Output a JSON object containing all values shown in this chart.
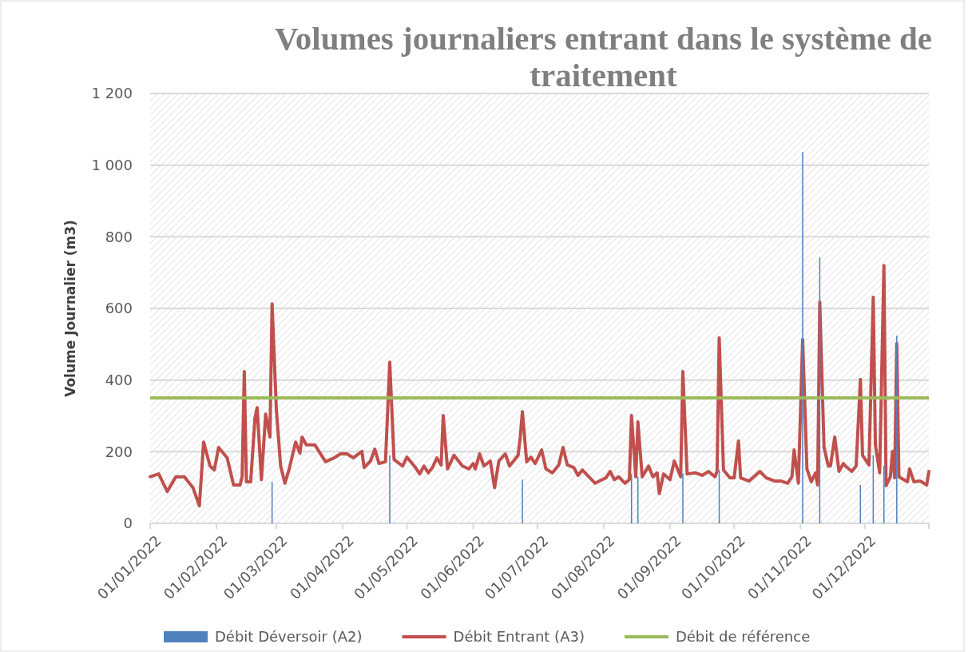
{
  "chart_data": {
    "type": "line",
    "title": "Volumes journaliers entrant dans le système de traitement",
    "ylabel": "Volume Journalier (m3)",
    "xlim": [
      "2022-01-01",
      "2022-12-31"
    ],
    "xticks": [
      {
        "value": "2022-01-01",
        "label": "01/01/2022"
      },
      {
        "value": "2022-02-01",
        "label": "01/02/2022"
      },
      {
        "value": "2022-03-01",
        "label": "01/03/2022"
      },
      {
        "value": "2022-04-01",
        "label": "01/04/2022"
      },
      {
        "value": "2022-05-01",
        "label": "01/05/2022"
      },
      {
        "value": "2022-06-01",
        "label": "01/06/2022"
      },
      {
        "value": "2022-07-01",
        "label": "01/07/2022"
      },
      {
        "value": "2022-08-01",
        "label": "01/08/2022"
      },
      {
        "value": "2022-09-01",
        "label": "01/09/2022"
      },
      {
        "value": "2022-10-01",
        "label": "01/10/2022"
      },
      {
        "value": "2022-11-01",
        "label": "01/11/2022"
      },
      {
        "value": "2022-12-01",
        "label": "01/12/2022"
      }
    ],
    "ylim": [
      0,
      1200
    ],
    "yticks": [
      0,
      200,
      400,
      600,
      800,
      {
        "value": 1000,
        "label": "1 000"
      },
      {
        "value": 1200,
        "label": "1 200"
      }
    ],
    "grid": "y",
    "legend": "bottom",
    "ref_lines": [
      {
        "axis": "y",
        "value": 350,
        "label": "Débit de référence",
        "color": "#9bbb59"
      }
    ],
    "series": [
      {
        "name": "Débit Déversoir (A2)",
        "type": "bar",
        "color": "#4f81bd",
        "x": [
          "2022-02-27",
          "2022-04-23",
          "2022-06-24",
          "2022-08-14",
          "2022-08-17",
          "2022-09-07",
          "2022-09-24",
          "2022-11-02",
          "2022-11-10",
          "2022-11-29",
          "2022-12-05",
          "2022-12-10",
          "2022-12-16"
        ],
        "values": [
          116,
          190,
          122,
          138,
          130,
          140,
          150,
          1037,
          742,
          107,
          190,
          160,
          524
        ]
      },
      {
        "name": "Débit Entrant (A3)",
        "color": "#c0504d",
        "x": [
          "2022-01-01",
          "2022-01-05",
          "2022-01-09",
          "2022-01-13",
          "2022-01-17",
          "2022-01-21",
          "2022-01-24",
          "2022-01-26",
          "2022-01-29",
          "2022-01-31",
          "2022-02-02",
          "2022-02-06",
          "2022-02-09",
          "2022-02-12",
          "2022-02-13",
          "2022-02-14",
          "2022-02-15",
          "2022-02-17",
          "2022-02-19",
          "2022-02-20",
          "2022-02-22",
          "2022-02-24",
          "2022-02-26",
          "2022-02-27",
          "2022-03-01",
          "2022-03-03",
          "2022-03-05",
          "2022-03-07",
          "2022-03-10",
          "2022-03-12",
          "2022-03-13",
          "2022-03-15",
          "2022-03-19",
          "2022-03-24",
          "2022-03-28",
          "2022-03-31",
          "2022-04-03",
          "2022-04-06",
          "2022-04-10",
          "2022-04-11",
          "2022-04-14",
          "2022-04-16",
          "2022-04-18",
          "2022-04-21",
          "2022-04-23",
          "2022-04-25",
          "2022-04-29",
          "2022-05-01",
          "2022-05-05",
          "2022-05-07",
          "2022-05-09",
          "2022-05-11",
          "2022-05-13",
          "2022-05-15",
          "2022-05-17",
          "2022-05-18",
          "2022-05-20",
          "2022-05-23",
          "2022-05-27",
          "2022-05-30",
          "2022-06-01",
          "2022-06-02",
          "2022-06-04",
          "2022-06-06",
          "2022-06-09",
          "2022-06-11",
          "2022-06-13",
          "2022-06-16",
          "2022-06-18",
          "2022-06-22",
          "2022-06-23",
          "2022-06-24",
          "2022-06-26",
          "2022-06-28",
          "2022-06-30",
          "2022-07-03",
          "2022-07-05",
          "2022-07-08",
          "2022-07-11",
          "2022-07-13",
          "2022-07-15",
          "2022-07-18",
          "2022-07-20",
          "2022-07-22",
          "2022-07-28",
          "2022-08-02",
          "2022-08-04",
          "2022-08-06",
          "2022-08-08",
          "2022-08-11",
          "2022-08-13",
          "2022-08-14",
          "2022-08-16",
          "2022-08-17",
          "2022-08-19",
          "2022-08-22",
          "2022-08-24",
          "2022-08-26",
          "2022-08-27",
          "2022-08-29",
          "2022-09-01",
          "2022-09-03",
          "2022-09-06",
          "2022-09-07",
          "2022-09-09",
          "2022-09-13",
          "2022-09-16",
          "2022-09-19",
          "2022-09-22",
          "2022-09-23",
          "2022-09-24",
          "2022-09-26",
          "2022-09-29",
          "2022-10-01",
          "2022-10-03",
          "2022-10-04",
          "2022-10-08",
          "2022-10-13",
          "2022-10-16",
          "2022-10-20",
          "2022-10-23",
          "2022-10-26",
          "2022-10-28",
          "2022-10-29",
          "2022-10-31",
          "2022-11-02",
          "2022-11-04",
          "2022-11-06",
          "2022-11-08",
          "2022-11-09",
          "2022-11-10",
          "2022-11-12",
          "2022-11-14",
          "2022-11-15",
          "2022-11-17",
          "2022-11-19",
          "2022-11-21",
          "2022-11-22",
          "2022-11-25",
          "2022-11-27",
          "2022-11-29",
          "2022-11-30",
          "2022-12-03",
          "2022-12-05",
          "2022-12-06",
          "2022-12-08",
          "2022-12-10",
          "2022-12-11",
          "2022-12-13",
          "2022-12-14",
          "2022-12-15",
          "2022-12-16",
          "2022-12-17",
          "2022-12-21",
          "2022-12-22",
          "2022-12-24",
          "2022-12-27",
          "2022-12-30",
          "2022-12-31"
        ],
        "values": [
          130,
          138,
          89,
          130,
          130,
          100,
          49,
          227,
          160,
          149,
          212,
          183,
          107,
          107,
          130,
          424,
          116,
          116,
          294,
          323,
          122,
          305,
          241,
          613,
          316,
          160,
          112,
          152,
          227,
          196,
          241,
          219,
          219,
          172,
          183,
          194,
          194,
          183,
          201,
          156,
          174,
          207,
          167,
          172,
          450,
          178,
          160,
          185,
          156,
          138,
          160,
          141,
          156,
          183,
          163,
          301,
          152,
          190,
          160,
          152,
          167,
          152,
          194,
          160,
          174,
          100,
          174,
          194,
          160,
          190,
          241,
          312,
          172,
          185,
          167,
          205,
          152,
          141,
          163,
          212,
          163,
          156,
          134,
          149,
          112,
          127,
          145,
          122,
          130,
          112,
          122,
          301,
          130,
          283,
          130,
          160,
          130,
          141,
          83,
          138,
          122,
          174,
          130,
          424,
          138,
          141,
          134,
          145,
          130,
          145,
          518,
          149,
          127,
          127,
          230,
          127,
          118,
          145,
          127,
          118,
          118,
          112,
          130,
          205,
          112,
          513,
          152,
          116,
          141,
          107,
          618,
          212,
          160,
          160,
          241,
          145,
          167,
          160,
          145,
          160,
          402,
          190,
          163,
          631,
          219,
          141,
          720,
          105,
          130,
          201,
          127,
          502,
          130,
          116,
          152,
          116,
          118,
          107,
          145
        ]
      }
    ]
  }
}
